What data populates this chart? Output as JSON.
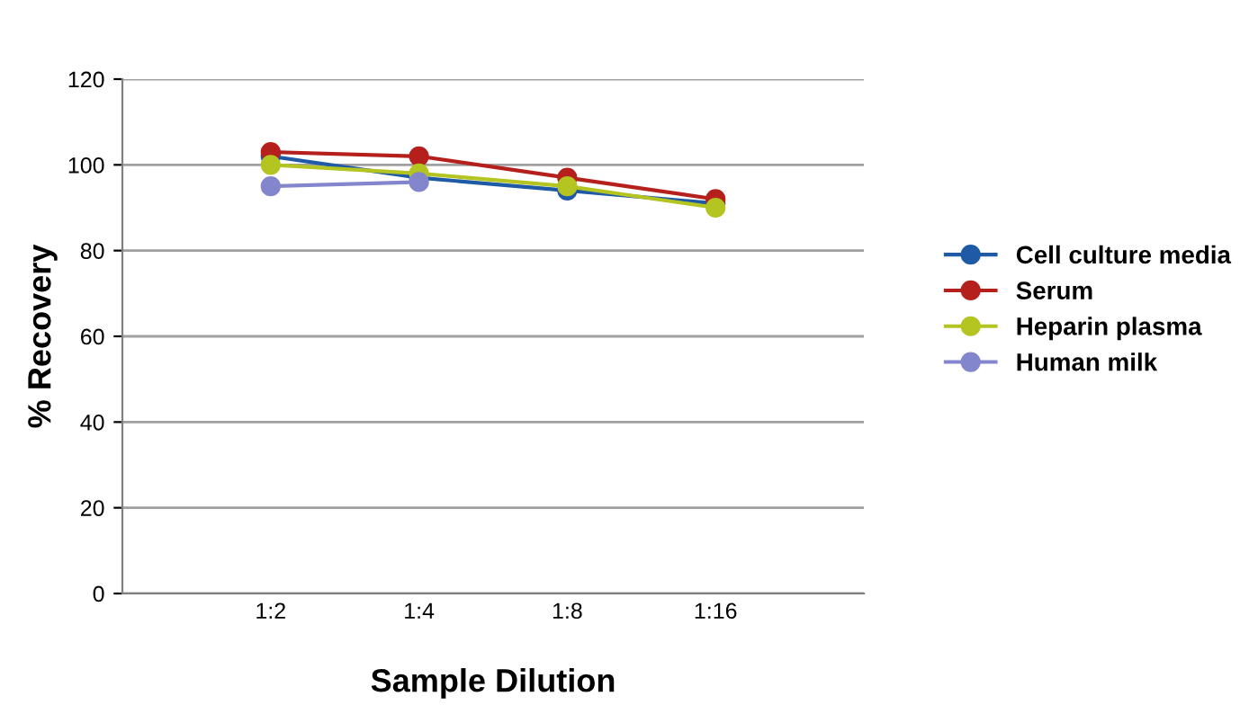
{
  "chart_data": {
    "type": "line",
    "xlabel": "Sample Dilution",
    "ylabel": "% Recovery",
    "categories": [
      "1:2",
      "1:4",
      "1:8",
      "1:16"
    ],
    "series": [
      {
        "name": "Cell culture media",
        "color": "#1f5aa6",
        "values": [
          102,
          97,
          94,
          91
        ]
      },
      {
        "name": "Serum",
        "color": "#b5201c",
        "values": [
          103,
          102,
          97,
          92
        ]
      },
      {
        "name": "Heparin plasma",
        "color": "#b4c420",
        "values": [
          100,
          98,
          95,
          90
        ]
      },
      {
        "name": "Human milk",
        "color": "#8386cc",
        "values": [
          95,
          96,
          null,
          null
        ]
      }
    ],
    "ylim": [
      0,
      120
    ],
    "yticks": [
      0,
      20,
      40,
      60,
      80,
      100,
      120
    ],
    "grid": "y",
    "legend": "right",
    "marker": "circle",
    "line_style": "solid"
  }
}
